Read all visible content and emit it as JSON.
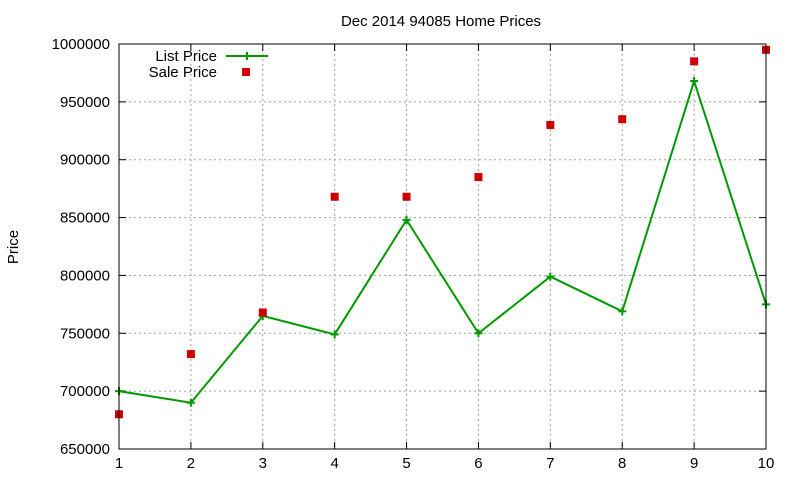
{
  "chart_data": {
    "type": "line",
    "title": "Dec 2014 94085 Home Prices",
    "xlabel": "",
    "ylabel": "Price",
    "xlim": [
      1,
      10
    ],
    "ylim": [
      650000,
      1000000
    ],
    "x_ticks": [
      "1",
      "2",
      "3",
      "4",
      "5",
      "6",
      "7",
      "8",
      "9",
      "10"
    ],
    "y_ticks": [
      "650000",
      "700000",
      "750000",
      "800000",
      "850000",
      "900000",
      "950000",
      "1000000"
    ],
    "grid": true,
    "legend_position": "top-left",
    "x": [
      1,
      2,
      3,
      4,
      5,
      6,
      7,
      8,
      9,
      10
    ],
    "series": [
      {
        "name": "List Price",
        "style": "line-with-plus-markers",
        "color": "#009900",
        "values": [
          700000,
          690000,
          765000,
          749000,
          848000,
          750000,
          799000,
          769000,
          968000,
          775000
        ]
      },
      {
        "name": "Sale Price",
        "style": "square-points",
        "color": "#cc0000",
        "values": [
          680000,
          732000,
          768000,
          868000,
          868000,
          885000,
          930000,
          935000,
          985000,
          995000
        ]
      }
    ]
  }
}
